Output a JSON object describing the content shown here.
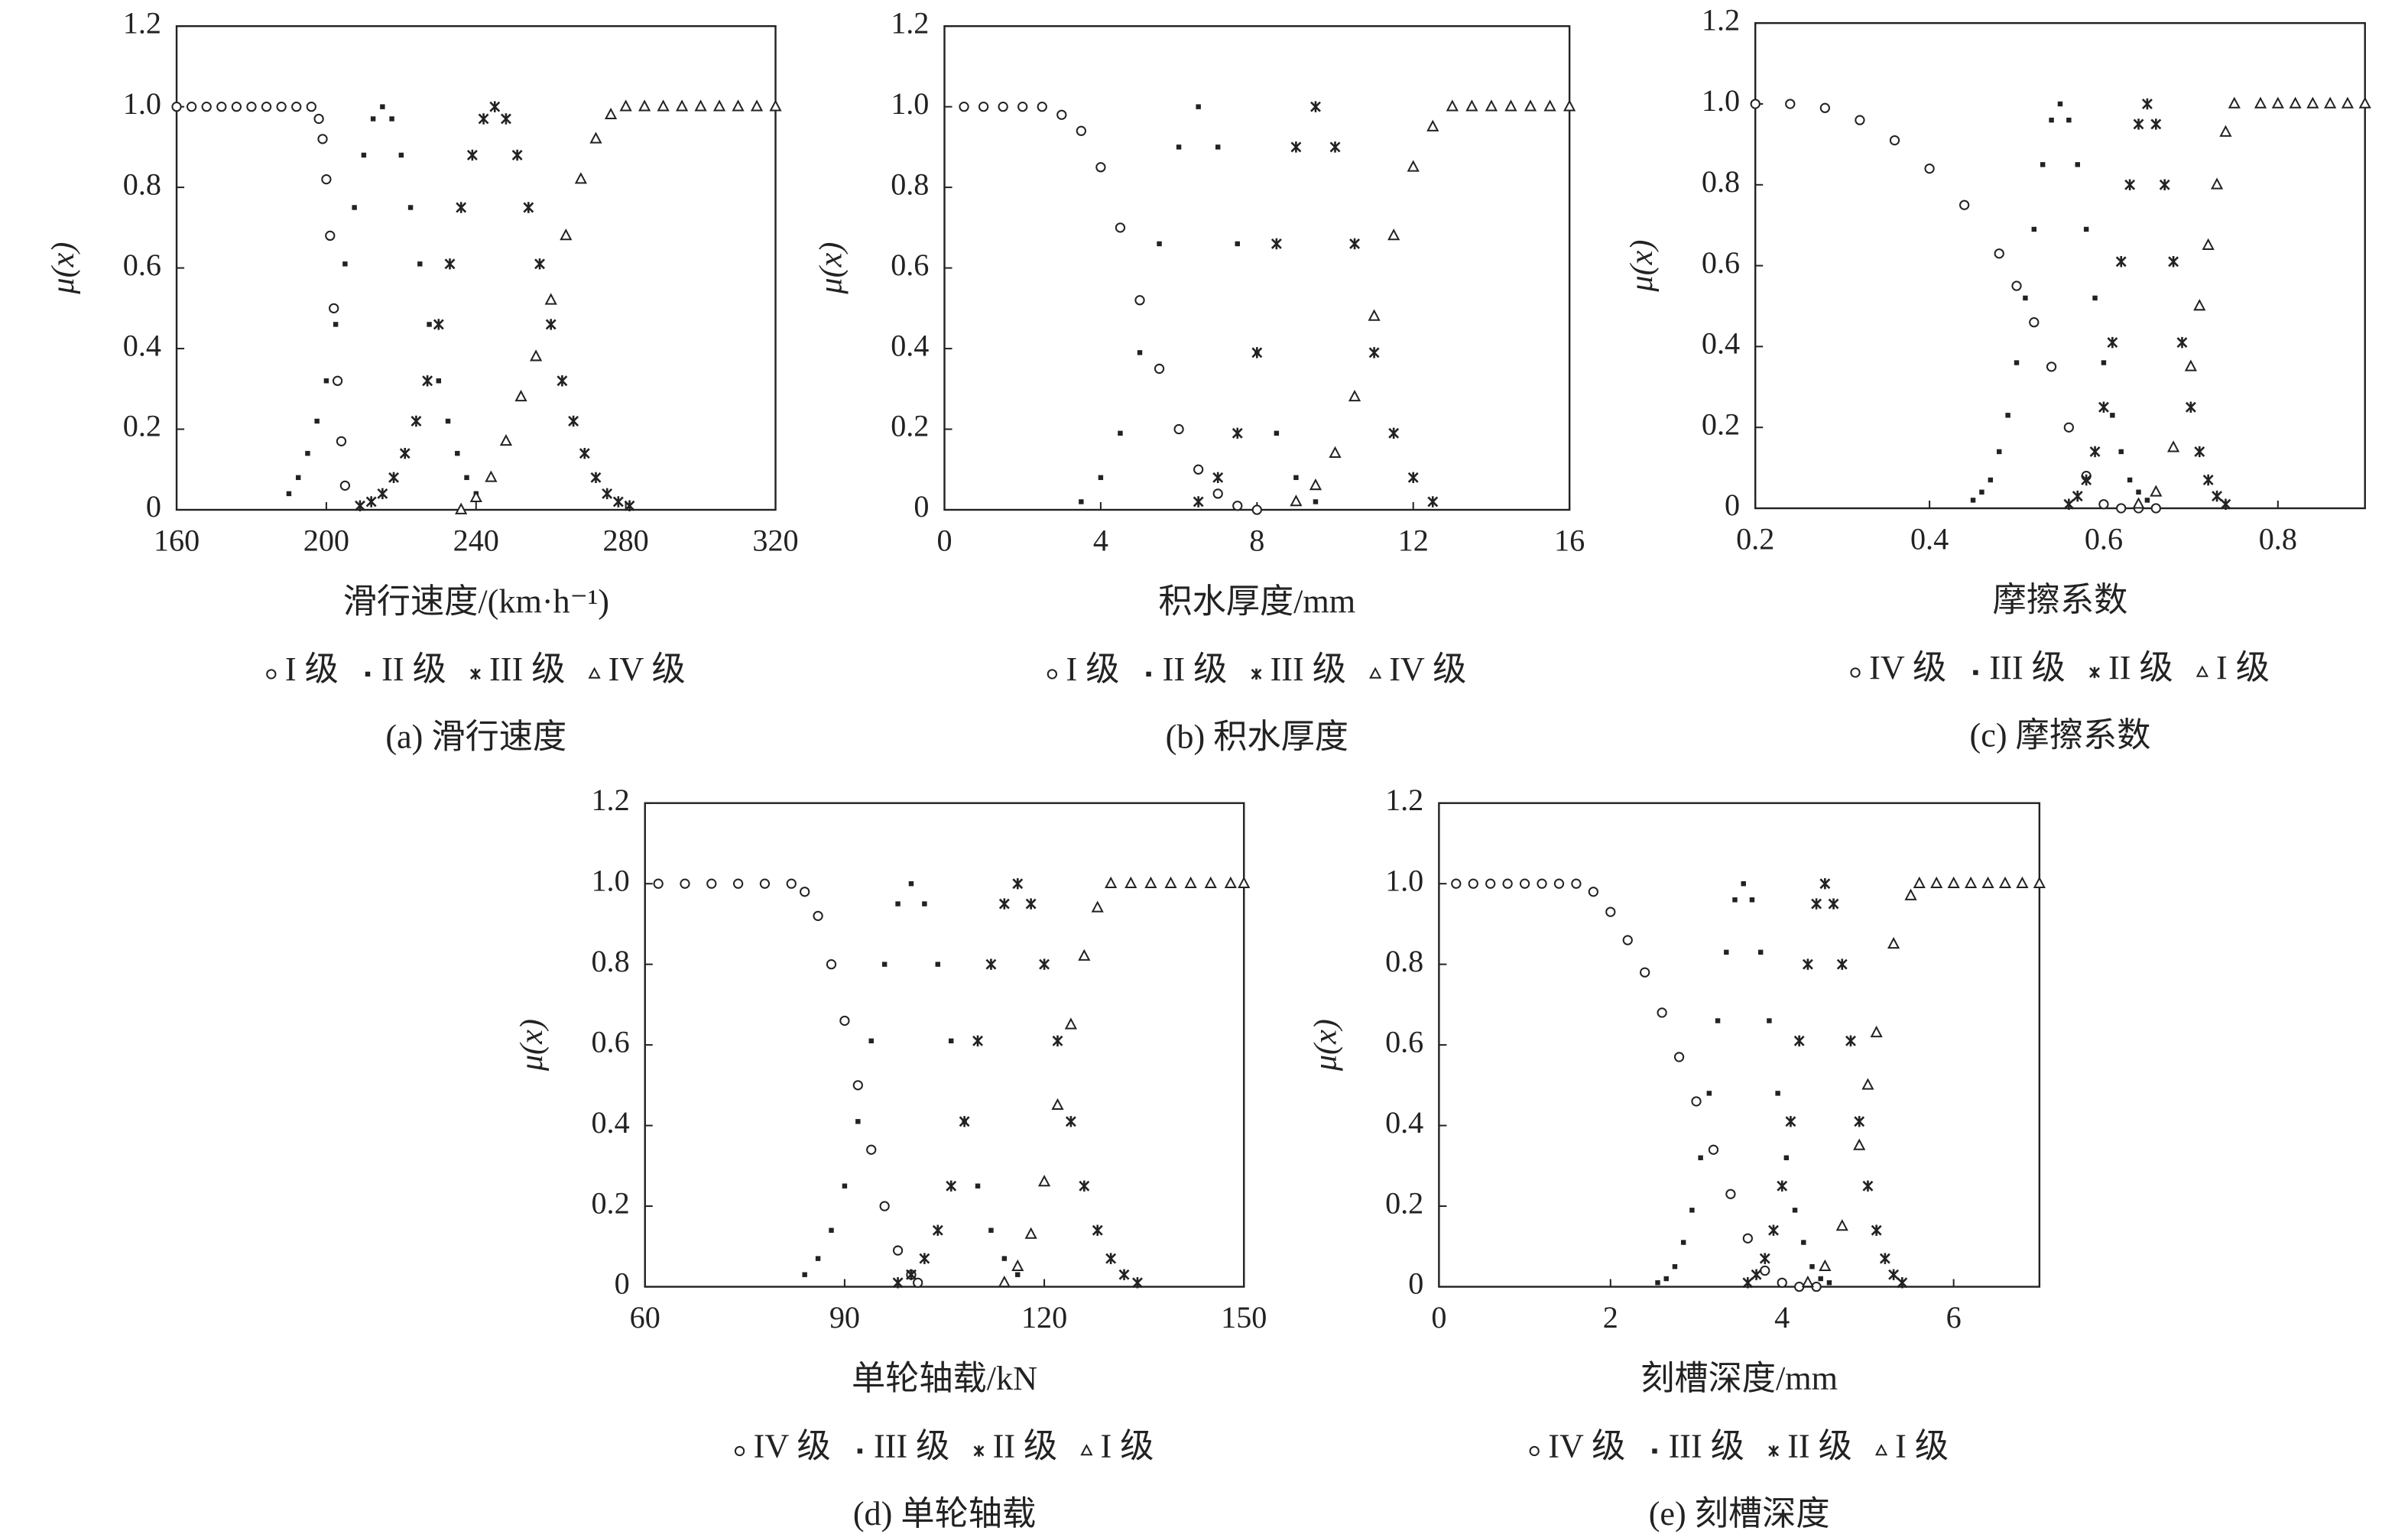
{
  "chart_data": [
    {
      "type": "scatter",
      "x_label": "滑行速度/(km·h⁻¹)",
      "y_label": "μ(x)",
      "caption": "(a) 滑行速度",
      "xlim": [
        160,
        320
      ],
      "xticks": [
        160,
        200,
        240,
        280,
        320
      ],
      "ylim": [
        0,
        1.2
      ],
      "yticks": [
        0,
        0.2,
        0.4,
        0.6,
        0.8,
        {
          "value": 1,
          "label": "1.0"
        },
        1.2
      ],
      "series": [
        {
          "name": "I 级",
          "marker": "circle",
          "color": "#222",
          "x": [
            160,
            164,
            168,
            172,
            176,
            180,
            184,
            188,
            192,
            196,
            198,
            199,
            200,
            201,
            202,
            203,
            204,
            205
          ],
          "values": [
            1,
            1,
            1,
            1,
            1,
            1,
            1,
            1,
            1,
            1,
            0.97,
            0.92,
            0.82,
            0.68,
            0.5,
            0.32,
            0.17,
            0.06
          ]
        },
        {
          "name": "II 级",
          "marker": "square",
          "color": "#222",
          "x": [
            190,
            192.5,
            195,
            197.5,
            200,
            202.5,
            205,
            207.5,
            210,
            212.5,
            215,
            217.5,
            220,
            222.5,
            225,
            227.5,
            230,
            232.5,
            235,
            237.5,
            240
          ],
          "values": [
            0.04,
            0.08,
            0.14,
            0.22,
            0.32,
            0.46,
            0.61,
            0.75,
            0.88,
            0.97,
            1,
            0.97,
            0.88,
            0.75,
            0.61,
            0.46,
            0.32,
            0.22,
            0.14,
            0.08,
            0.04
          ]
        },
        {
          "name": "III 级",
          "marker": "asterisk",
          "color": "#222",
          "x": [
            209,
            212,
            215,
            218,
            221,
            224,
            227,
            230,
            233,
            236,
            239,
            242,
            245,
            248,
            251,
            254,
            257,
            260,
            263,
            266,
            269,
            272,
            275,
            278,
            281
          ],
          "values": [
            0.01,
            0.02,
            0.04,
            0.08,
            0.14,
            0.22,
            0.32,
            0.46,
            0.61,
            0.75,
            0.88,
            0.97,
            1,
            0.97,
            0.88,
            0.75,
            0.61,
            0.46,
            0.32,
            0.22,
            0.14,
            0.08,
            0.04,
            0.02,
            0.01
          ]
        },
        {
          "name": "IV 级",
          "marker": "triangle",
          "color": "#222",
          "x": [
            236,
            240,
            244,
            248,
            252,
            256,
            260,
            264,
            268,
            272,
            276,
            280,
            285,
            290,
            295,
            300,
            305,
            310,
            315,
            320
          ],
          "values": [
            0,
            0.03,
            0.08,
            0.17,
            0.28,
            0.38,
            0.52,
            0.68,
            0.82,
            0.92,
            0.98,
            1,
            1,
            1,
            1,
            1,
            1,
            1,
            1,
            1
          ]
        }
      ]
    },
    {
      "type": "scatter",
      "x_label": "积水厚度/mm",
      "y_label": "μ(x)",
      "caption": "(b) 积水厚度",
      "xlim": [
        0,
        16
      ],
      "xticks": [
        0,
        4,
        8,
        12,
        16
      ],
      "ylim": [
        0,
        1.2
      ],
      "yticks": [
        0,
        0.2,
        0.4,
        0.6,
        0.8,
        {
          "value": 1,
          "label": "1.0"
        },
        1.2
      ],
      "series": [
        {
          "name": "I 级",
          "marker": "circle",
          "color": "#222",
          "x": [
            0.5,
            1,
            1.5,
            2,
            2.5,
            3,
            3.5,
            4,
            4.5,
            5,
            5.5,
            6,
            6.5,
            7,
            7.5,
            8
          ],
          "values": [
            1,
            1,
            1,
            1,
            1,
            0.98,
            0.94,
            0.85,
            0.7,
            0.52,
            0.35,
            0.2,
            0.1,
            0.04,
            0.01,
            0
          ]
        },
        {
          "name": "II 级",
          "marker": "square",
          "color": "#222",
          "x": [
            3.5,
            4,
            4.5,
            5,
            5.5,
            6,
            6.5,
            7,
            7.5,
            8,
            8.5,
            9,
            9.5
          ],
          "values": [
            0.02,
            0.08,
            0.19,
            0.39,
            0.66,
            0.9,
            1,
            0.9,
            0.66,
            0.39,
            0.19,
            0.08,
            0.02
          ]
        },
        {
          "name": "III 级",
          "marker": "asterisk",
          "color": "#222",
          "x": [
            6.5,
            7,
            7.5,
            8,
            8.5,
            9,
            9.5,
            10,
            10.5,
            11,
            11.5,
            12,
            12.5
          ],
          "values": [
            0.02,
            0.08,
            0.19,
            0.39,
            0.66,
            0.9,
            1,
            0.9,
            0.66,
            0.39,
            0.19,
            0.08,
            0.02
          ]
        },
        {
          "name": "IV 级",
          "marker": "triangle",
          "color": "#222",
          "x": [
            9,
            9.5,
            10,
            10.5,
            11,
            11.5,
            12,
            12.5,
            13,
            13.5,
            14,
            14.5,
            15,
            15.5,
            16
          ],
          "values": [
            0.02,
            0.06,
            0.14,
            0.28,
            0.48,
            0.68,
            0.85,
            0.95,
            1,
            1,
            1,
            1,
            1,
            1,
            1
          ]
        }
      ]
    },
    {
      "type": "scatter",
      "x_label": "摩擦系数",
      "y_label": "μ(x)",
      "caption": "(c) 摩擦系数",
      "xlim": [
        0.2,
        0.9
      ],
      "xticks": [
        0.2,
        0.4,
        0.6,
        0.8
      ],
      "ylim": [
        0,
        1.2
      ],
      "yticks": [
        0,
        0.2,
        0.4,
        0.6,
        0.8,
        {
          "value": 1,
          "label": "1.0"
        },
        1.2
      ],
      "series": [
        {
          "name": "IV 级",
          "marker": "circle",
          "color": "#222",
          "x": [
            0.2,
            0.24,
            0.28,
            0.32,
            0.36,
            0.4,
            0.44,
            0.48,
            0.5,
            0.52,
            0.54,
            0.56,
            0.58,
            0.6,
            0.62,
            0.64,
            0.66
          ],
          "values": [
            1,
            1,
            0.99,
            0.96,
            0.91,
            0.84,
            0.75,
            0.63,
            0.55,
            0.46,
            0.35,
            0.2,
            0.08,
            0.01,
            0,
            0,
            0
          ]
        },
        {
          "name": "III 级",
          "marker": "square",
          "color": "#222",
          "x": [
            0.45,
            0.46,
            0.47,
            0.48,
            0.49,
            0.5,
            0.51,
            0.52,
            0.53,
            0.54,
            0.55,
            0.56,
            0.57,
            0.58,
            0.59,
            0.6,
            0.61,
            0.62,
            0.63,
            0.64,
            0.65
          ],
          "values": [
            0.02,
            0.04,
            0.07,
            0.14,
            0.23,
            0.36,
            0.52,
            0.69,
            0.85,
            0.96,
            1,
            0.96,
            0.85,
            0.69,
            0.52,
            0.36,
            0.23,
            0.14,
            0.07,
            0.04,
            0.02
          ]
        },
        {
          "name": "II 级",
          "marker": "asterisk",
          "color": "#222",
          "x": [
            0.56,
            0.57,
            0.58,
            0.59,
            0.6,
            0.61,
            0.62,
            0.63,
            0.64,
            0.65,
            0.66,
            0.67,
            0.68,
            0.69,
            0.7,
            0.71,
            0.72,
            0.73,
            0.74
          ],
          "values": [
            0.01,
            0.03,
            0.07,
            0.14,
            0.25,
            0.41,
            0.61,
            0.8,
            0.95,
            1,
            0.95,
            0.8,
            0.61,
            0.41,
            0.25,
            0.14,
            0.07,
            0.03,
            0.01
          ]
        },
        {
          "name": "I 级",
          "marker": "triangle",
          "color": "#222",
          "x": [
            0.64,
            0.66,
            0.68,
            0.7,
            0.71,
            0.72,
            0.73,
            0.74,
            0.75,
            0.78,
            0.8,
            0.82,
            0.84,
            0.86,
            0.88,
            0.9
          ],
          "values": [
            0.01,
            0.04,
            0.15,
            0.35,
            0.5,
            0.65,
            0.8,
            0.93,
            1,
            1,
            1,
            1,
            1,
            1,
            1,
            1
          ]
        }
      ]
    },
    {
      "type": "scatter",
      "x_label": "单轮轴载/kN",
      "y_label": "μ(x)",
      "caption": "(d) 单轮轴载",
      "xlim": [
        60,
        150
      ],
      "xticks": [
        60,
        90,
        120,
        150
      ],
      "ylim": [
        0,
        1.2
      ],
      "yticks": [
        0,
        0.2,
        0.4,
        0.6,
        0.8,
        {
          "value": 1,
          "label": "1.0"
        },
        1.2
      ],
      "series": [
        {
          "name": "IV 级",
          "marker": "circle",
          "color": "#222",
          "x": [
            62,
            66,
            70,
            74,
            78,
            82,
            84,
            86,
            88,
            90,
            92,
            94,
            96,
            98,
            100,
            101
          ],
          "values": [
            1,
            1,
            1,
            1,
            1,
            1,
            0.98,
            0.92,
            0.8,
            0.66,
            0.5,
            0.34,
            0.2,
            0.09,
            0.03,
            0.01
          ]
        },
        {
          "name": "III 级",
          "marker": "square",
          "color": "#222",
          "x": [
            84,
            86,
            88,
            90,
            92,
            94,
            96,
            98,
            100,
            102,
            104,
            106,
            108,
            110,
            112,
            114,
            116
          ],
          "values": [
            0.03,
            0.07,
            0.14,
            0.25,
            0.41,
            0.61,
            0.8,
            0.95,
            1,
            0.95,
            0.8,
            0.61,
            0.41,
            0.25,
            0.14,
            0.07,
            0.03
          ]
        },
        {
          "name": "II 级",
          "marker": "asterisk",
          "color": "#222",
          "x": [
            98,
            100,
            102,
            104,
            106,
            108,
            110,
            112,
            114,
            116,
            118,
            120,
            122,
            124,
            126,
            128,
            130,
            132,
            134
          ],
          "values": [
            0.01,
            0.03,
            0.07,
            0.14,
            0.25,
            0.41,
            0.61,
            0.8,
            0.95,
            1,
            0.95,
            0.8,
            0.61,
            0.41,
            0.25,
            0.14,
            0.07,
            0.03,
            0.01
          ]
        },
        {
          "name": "I 级",
          "marker": "triangle",
          "color": "#222",
          "x": [
            114,
            116,
            118,
            120,
            122,
            124,
            126,
            128,
            130,
            133,
            136,
            139,
            142,
            145,
            148,
            150
          ],
          "values": [
            0.01,
            0.05,
            0.13,
            0.26,
            0.45,
            0.65,
            0.82,
            0.94,
            1,
            1,
            1,
            1,
            1,
            1,
            1,
            1
          ]
        }
      ]
    },
    {
      "type": "scatter",
      "x_label": "刻槽深度/mm",
      "y_label": "μ(x)",
      "caption": "(e) 刻槽深度",
      "xlim": [
        0,
        7
      ],
      "xticks": [
        0,
        2,
        4,
        6
      ],
      "ylim": [
        0,
        1.2
      ],
      "yticks": [
        0,
        0.2,
        0.4,
        0.6,
        0.8,
        {
          "value": 1,
          "label": "1.0"
        },
        1.2
      ],
      "series": [
        {
          "name": "IV 级",
          "marker": "circle",
          "color": "#222",
          "x": [
            0.2,
            0.4,
            0.6,
            0.8,
            1,
            1.2,
            1.4,
            1.6,
            1.8,
            2,
            2.2,
            2.4,
            2.6,
            2.8,
            3,
            3.2,
            3.4,
            3.6,
            3.8,
            4,
            4.2,
            4.4
          ],
          "values": [
            1,
            1,
            1,
            1,
            1,
            1,
            1,
            1,
            0.98,
            0.93,
            0.86,
            0.78,
            0.68,
            0.57,
            0.46,
            0.34,
            0.23,
            0.12,
            0.04,
            0.01,
            0,
            0
          ]
        },
        {
          "name": "III 级",
          "marker": "square",
          "color": "#222",
          "x": [
            2.55,
            2.65,
            2.75,
            2.85,
            2.95,
            3.05,
            3.15,
            3.25,
            3.35,
            3.45,
            3.55,
            3.65,
            3.75,
            3.85,
            3.95,
            4.05,
            4.15,
            4.25,
            4.35,
            4.45,
            4.55
          ],
          "values": [
            0.01,
            0.02,
            0.05,
            0.11,
            0.19,
            0.32,
            0.48,
            0.66,
            0.83,
            0.96,
            1,
            0.96,
            0.83,
            0.66,
            0.48,
            0.32,
            0.19,
            0.11,
            0.05,
            0.02,
            0.01
          ]
        },
        {
          "name": "II 级",
          "marker": "asterisk",
          "color": "#222",
          "x": [
            3.6,
            3.7,
            3.8,
            3.9,
            4,
            4.1,
            4.2,
            4.3,
            4.4,
            4.5,
            4.6,
            4.7,
            4.8,
            4.9,
            5,
            5.1,
            5.2,
            5.3,
            5.4
          ],
          "values": [
            0.01,
            0.03,
            0.07,
            0.14,
            0.25,
            0.41,
            0.61,
            0.8,
            0.95,
            1,
            0.95,
            0.8,
            0.61,
            0.41,
            0.25,
            0.14,
            0.07,
            0.03,
            0.01
          ]
        },
        {
          "name": "I 级",
          "marker": "triangle",
          "color": "#222",
          "x": [
            4.3,
            4.5,
            4.7,
            4.9,
            5,
            5.1,
            5.3,
            5.5,
            5.6,
            5.8,
            6,
            6.2,
            6.4,
            6.6,
            6.8,
            7
          ],
          "values": [
            0.01,
            0.05,
            0.15,
            0.35,
            0.5,
            0.63,
            0.85,
            0.97,
            1,
            1,
            1,
            1,
            1,
            1,
            1,
            1
          ]
        }
      ]
    }
  ]
}
